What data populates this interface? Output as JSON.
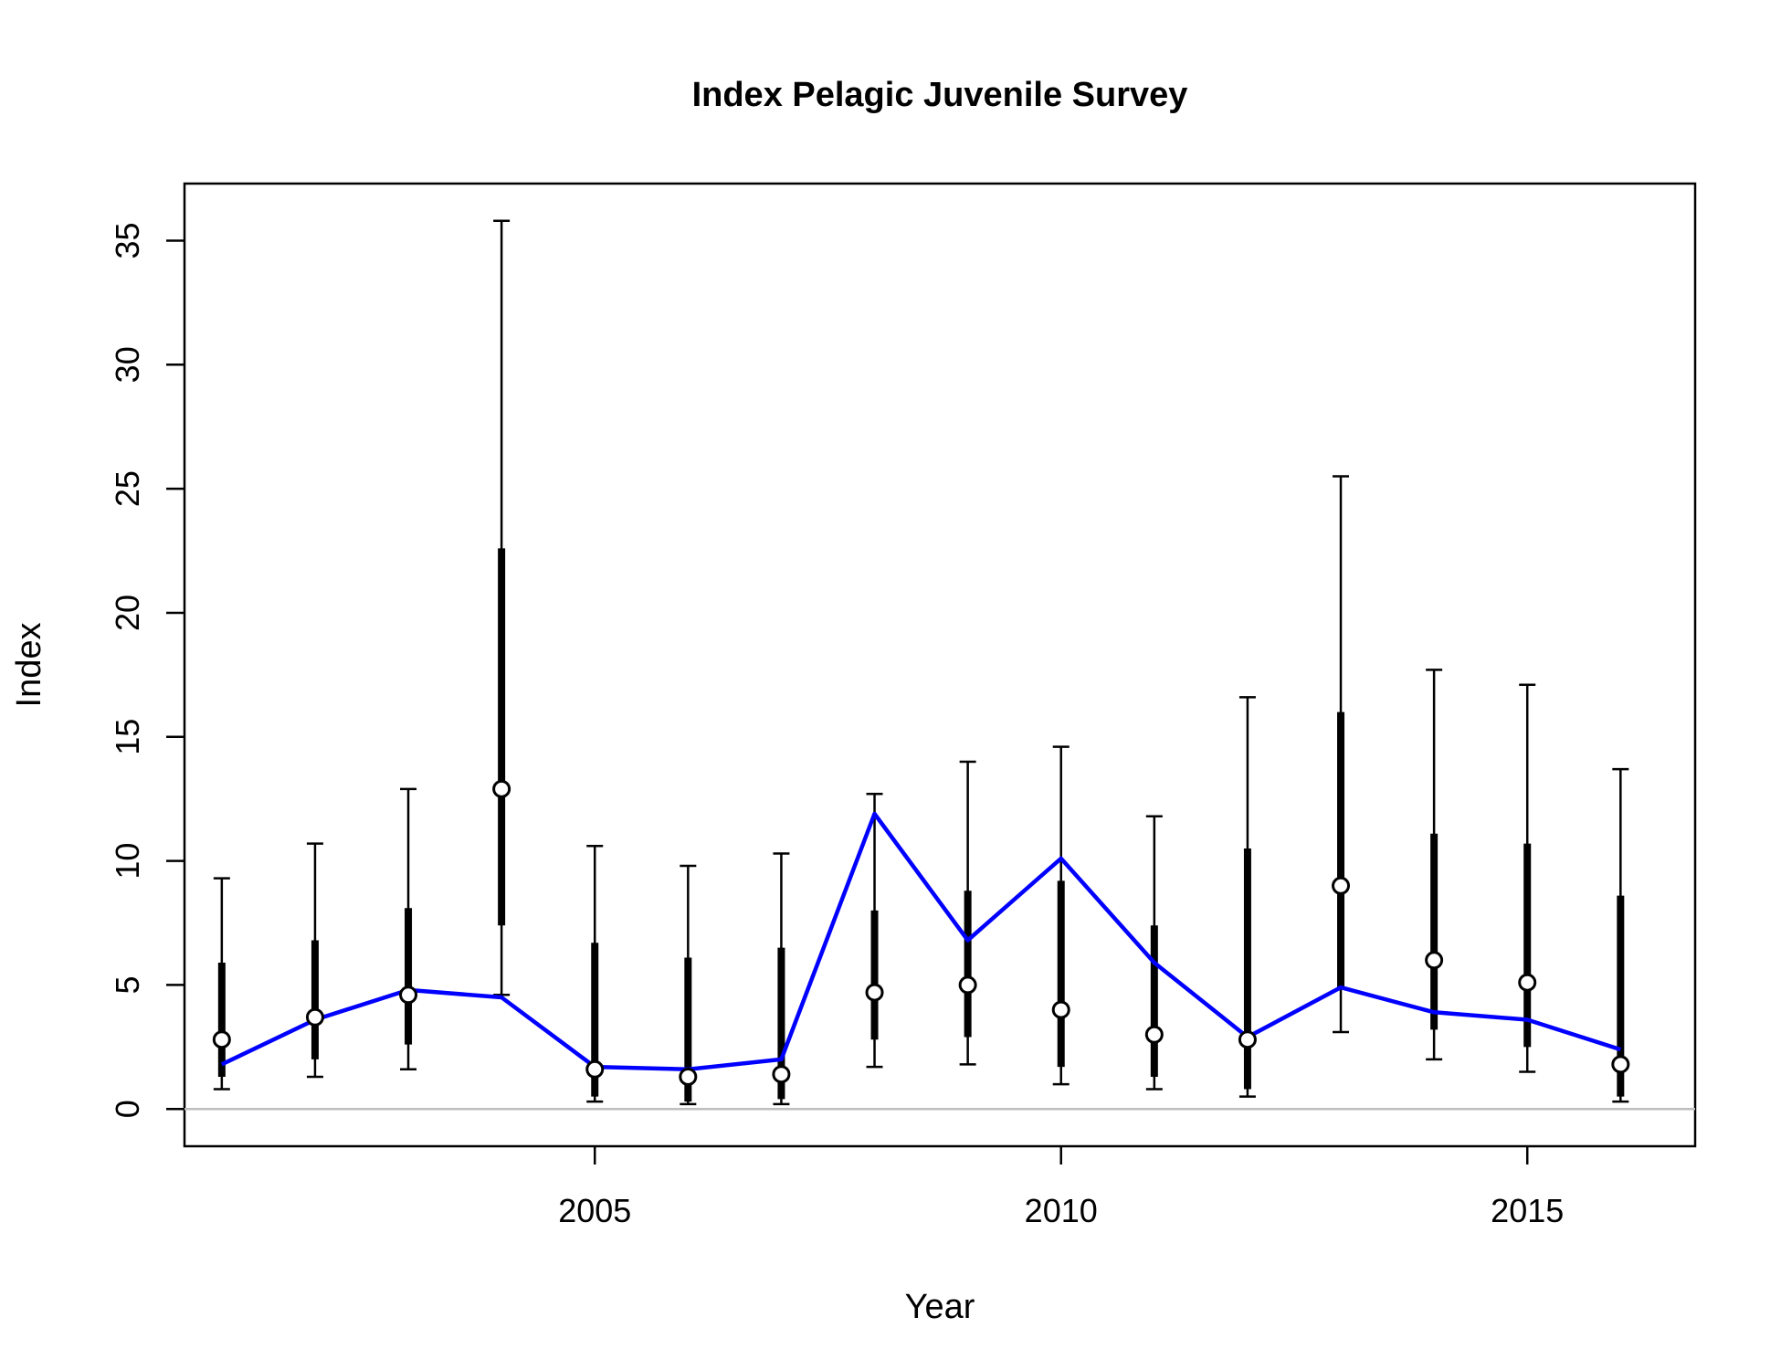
{
  "chart_data": {
    "type": "scatter",
    "title": "Index Pelagic Juvenile Survey",
    "xlabel": "Year",
    "ylabel": "Index",
    "xlim": [
      2000.6,
      2016.8
    ],
    "ylim": [
      -1.5,
      37.3
    ],
    "x_ticks": [
      "2005",
      "2010",
      "2015"
    ],
    "y_ticks": [
      "0",
      "5",
      "10",
      "15",
      "20",
      "25",
      "30",
      "35"
    ],
    "reference_line_y": 0,
    "series": [
      {
        "style": "points_with_intervals",
        "x": [
          2001,
          2002,
          2003,
          2004,
          2005,
          2006,
          2007,
          2008,
          2009,
          2010,
          2011,
          2012,
          2013,
          2014,
          2015,
          2016
        ],
        "values": [
          2.8,
          3.7,
          4.6,
          12.9,
          1.6,
          1.3,
          1.4,
          4.7,
          5.0,
          4.0,
          3.0,
          2.8,
          9.0,
          6.0,
          5.1,
          1.8
        ],
        "inner_low": [
          1.3,
          2.0,
          2.6,
          7.4,
          0.5,
          0.3,
          0.4,
          2.8,
          2.9,
          1.7,
          1.3,
          0.8,
          4.9,
          3.2,
          2.5,
          0.5
        ],
        "inner_high": [
          5.9,
          6.8,
          8.1,
          22.6,
          6.7,
          6.1,
          6.5,
          8.0,
          8.8,
          9.2,
          7.4,
          10.5,
          16.0,
          11.1,
          10.7,
          8.6
        ],
        "outer_low": [
          0.8,
          1.3,
          1.6,
          4.6,
          0.3,
          0.2,
          0.2,
          1.7,
          1.8,
          1.0,
          0.8,
          0.5,
          3.1,
          2.0,
          1.5,
          0.3
        ],
        "outer_high": [
          9.3,
          10.7,
          12.9,
          35.8,
          10.6,
          9.8,
          10.3,
          12.7,
          14.0,
          14.6,
          11.8,
          16.6,
          25.5,
          17.7,
          17.1,
          13.7
        ]
      },
      {
        "style": "line",
        "color": "#0000ff",
        "x": [
          2001,
          2002,
          2003,
          2004,
          2005,
          2006,
          2007,
          2008,
          2009,
          2010,
          2011,
          2012,
          2013,
          2014,
          2015,
          2016
        ],
        "values": [
          1.8,
          3.6,
          4.8,
          4.5,
          1.7,
          1.6,
          2.0,
          11.9,
          6.8,
          10.1,
          5.9,
          2.9,
          4.9,
          3.9,
          3.6,
          2.4
        ]
      }
    ],
    "colors": {
      "points_fill": "#ffffff",
      "points_stroke": "#000000",
      "intervals": "#000000",
      "fit_line": "#0000ff",
      "zero_line": "#bebebe"
    },
    "grid": false,
    "legend": "none"
  }
}
